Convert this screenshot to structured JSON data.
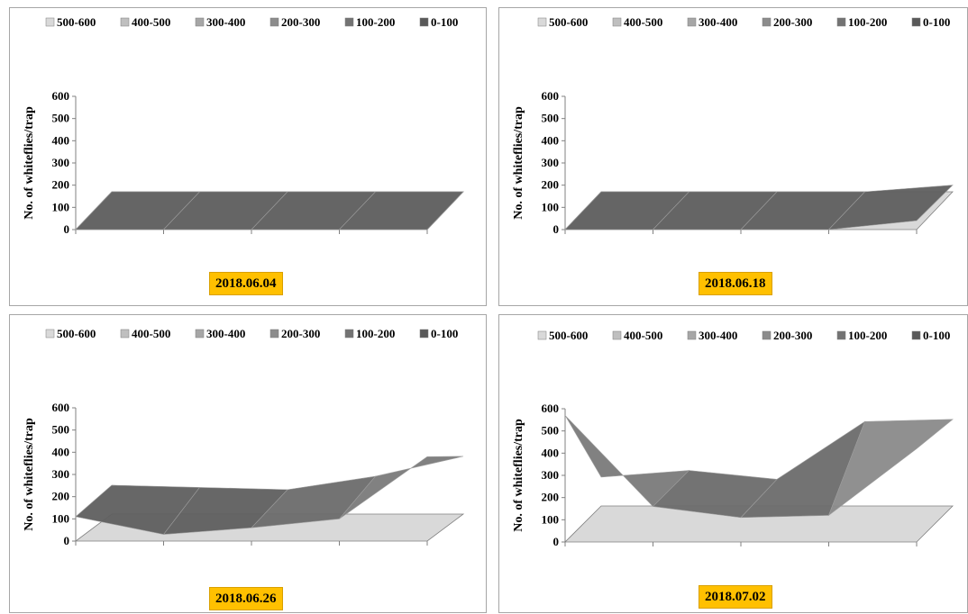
{
  "chart_data": [
    {
      "type": "surface",
      "date_label": "2018.06.04",
      "ylabel": "No. of whiteflies/trap",
      "yticks": [
        "0",
        "100",
        "200",
        "300",
        "400",
        "500",
        "600"
      ],
      "ylim": [
        0,
        600
      ],
      "legend": [
        "500-600",
        "400-500",
        "300-400",
        "200-300",
        "100-200",
        "0-100"
      ],
      "series": [
        {
          "values": [
            0,
            0,
            0,
            0,
            0
          ]
        },
        {
          "values": [
            0,
            0,
            0,
            0,
            0
          ]
        }
      ]
    },
    {
      "type": "surface",
      "date_label": "2018.06.18",
      "ylabel": "No. of whiteflies/trap",
      "yticks": [
        "0",
        "100",
        "200",
        "300",
        "400",
        "500",
        "600"
      ],
      "ylim": [
        0,
        600
      ],
      "legend": [
        "500-600",
        "400-500",
        "300-400",
        "200-300",
        "100-200",
        "0-100"
      ],
      "series": [
        {
          "values": [
            0,
            0,
            0,
            0,
            40
          ]
        },
        {
          "values": [
            0,
            0,
            0,
            0,
            30
          ]
        }
      ]
    },
    {
      "type": "surface",
      "date_label": "2018.06.26",
      "ylabel": "No. of whiteflies/trap",
      "yticks": [
        "0",
        "100",
        "200",
        "300",
        "400",
        "500",
        "600"
      ],
      "ylim": [
        0,
        600
      ],
      "legend": [
        "500-600",
        "400-500",
        "300-400",
        "200-300",
        "100-200",
        "0-100"
      ],
      "series": [
        {
          "values": [
            110,
            30,
            60,
            100,
            380
          ]
        },
        {
          "values": [
            130,
            120,
            110,
            170,
            260
          ]
        }
      ]
    },
    {
      "type": "surface",
      "date_label": "2018.07.02",
      "ylabel": "No. of whiteflies/trap",
      "yticks": [
        "0",
        "100",
        "200",
        "300",
        "400",
        "500",
        "600"
      ],
      "ylim": [
        0,
        600
      ],
      "legend": [
        "500-600",
        "400-500",
        "300-400",
        "200-300",
        "100-200",
        "0-100"
      ],
      "series": [
        {
          "values": [
            570,
            160,
            110,
            120,
            420
          ]
        },
        {
          "values": [
            130,
            160,
            120,
            380,
            390
          ]
        }
      ]
    }
  ],
  "colors": {
    "legend_swatches": [
      "#d9d9d9",
      "#bfbfbf",
      "#a6a6a6",
      "#8c8c8c",
      "#737373",
      "#595959"
    ],
    "floor": "#d9d9d9",
    "badge": "#ffc000"
  }
}
